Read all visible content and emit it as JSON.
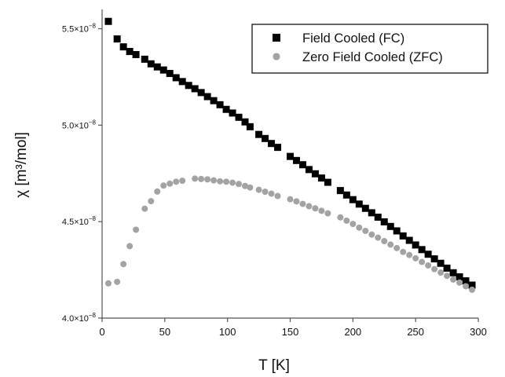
{
  "chart_data": {
    "type": "scatter",
    "xlabel": "T [K]",
    "ylabel": "χ [m³/mol]",
    "xlim": [
      0,
      300
    ],
    "ylim": [
      4e-08,
      5.6e-08
    ],
    "x_ticks": [
      0,
      50,
      100,
      150,
      200,
      250,
      300
    ],
    "y_ticks": [
      {
        "value": 4e-08,
        "mantissa": "4.0×10",
        "exponent": "−8"
      },
      {
        "value": 4.5e-08,
        "mantissa": "4.5×10",
        "exponent": "−8"
      },
      {
        "value": 5e-08,
        "mantissa": "5.0×10",
        "exponent": "−8"
      },
      {
        "value": 5.5e-08,
        "mantissa": "5.5×10",
        "exponent": "−8"
      }
    ],
    "grid": false,
    "legend_position": "top-right",
    "series": [
      {
        "name": "Field Cooled (FC)",
        "marker": "square",
        "color": "#000000",
        "x": [
          5,
          12,
          17,
          22,
          27,
          34,
          39,
          44,
          49,
          54,
          59,
          64,
          69,
          74,
          79,
          84,
          89,
          94,
          99,
          104,
          109,
          114,
          118,
          125,
          130,
          135,
          140,
          150,
          155,
          160,
          165,
          170,
          175,
          180,
          190,
          195,
          200,
          205,
          210,
          215,
          220,
          225,
          230,
          235,
          240,
          245,
          250,
          255,
          260,
          265,
          270,
          275,
          280,
          285,
          290,
          295
        ],
        "y": [
          5.538e-08,
          5.447e-08,
          5.406e-08,
          5.382e-08,
          5.366e-08,
          5.342e-08,
          5.318e-08,
          5.302e-08,
          5.286e-08,
          5.268e-08,
          5.246e-08,
          5.226e-08,
          5.206e-08,
          5.189e-08,
          5.169e-08,
          5.148e-08,
          5.127e-08,
          5.106e-08,
          5.082e-08,
          5.063e-08,
          5.041e-08,
          5.017e-08,
          4.992e-08,
          4.952e-08,
          4.931e-08,
          4.905e-08,
          4.885e-08,
          4.838e-08,
          4.817e-08,
          4.795e-08,
          4.77e-08,
          4.748e-08,
          4.726e-08,
          4.704e-08,
          4.661e-08,
          4.638e-08,
          4.614e-08,
          4.591e-08,
          4.569e-08,
          4.546e-08,
          4.523e-08,
          4.499e-08,
          4.475e-08,
          4.452e-08,
          4.426e-08,
          4.403e-08,
          4.379e-08,
          4.355e-08,
          4.331e-08,
          4.307e-08,
          4.284e-08,
          4.259e-08,
          4.235e-08,
          4.214e-08,
          4.193e-08,
          4.171e-08
        ]
      },
      {
        "name": "Zero Field Cooled (ZFC)",
        "marker": "circle",
        "color": "#a3a3a3",
        "x": [
          5,
          12,
          17,
          22,
          27,
          34,
          39,
          44,
          49,
          54,
          59,
          64,
          74,
          79,
          84,
          89,
          94,
          99,
          104,
          109,
          114,
          118,
          125,
          130,
          135,
          140,
          150,
          155,
          160,
          165,
          170,
          175,
          180,
          190,
          195,
          200,
          205,
          210,
          215,
          220,
          225,
          230,
          235,
          240,
          245,
          250,
          255,
          260,
          265,
          270,
          275,
          280,
          285,
          290,
          295
        ],
        "y": [
          4.18e-08,
          4.188e-08,
          4.28e-08,
          4.373e-08,
          4.458e-08,
          4.567e-08,
          4.606e-08,
          4.656e-08,
          4.687e-08,
          4.697e-08,
          4.707e-08,
          4.712e-08,
          4.723e-08,
          4.721e-08,
          4.719e-08,
          4.714e-08,
          4.709e-08,
          4.707e-08,
          4.702e-08,
          4.695e-08,
          4.685e-08,
          4.677e-08,
          4.665e-08,
          4.655e-08,
          4.645e-08,
          4.633e-08,
          4.616e-08,
          4.605e-08,
          4.592e-08,
          4.58e-08,
          4.569e-08,
          4.556e-08,
          4.543e-08,
          4.522e-08,
          4.505e-08,
          4.488e-08,
          4.469e-08,
          4.452e-08,
          4.433e-08,
          4.417e-08,
          4.399e-08,
          4.381e-08,
          4.363e-08,
          4.343e-08,
          4.327e-08,
          4.31e-08,
          4.291e-08,
          4.273e-08,
          4.254e-08,
          4.236e-08,
          4.219e-08,
          4.2e-08,
          4.184e-08,
          4.165e-08,
          4.147e-08
        ]
      }
    ]
  }
}
